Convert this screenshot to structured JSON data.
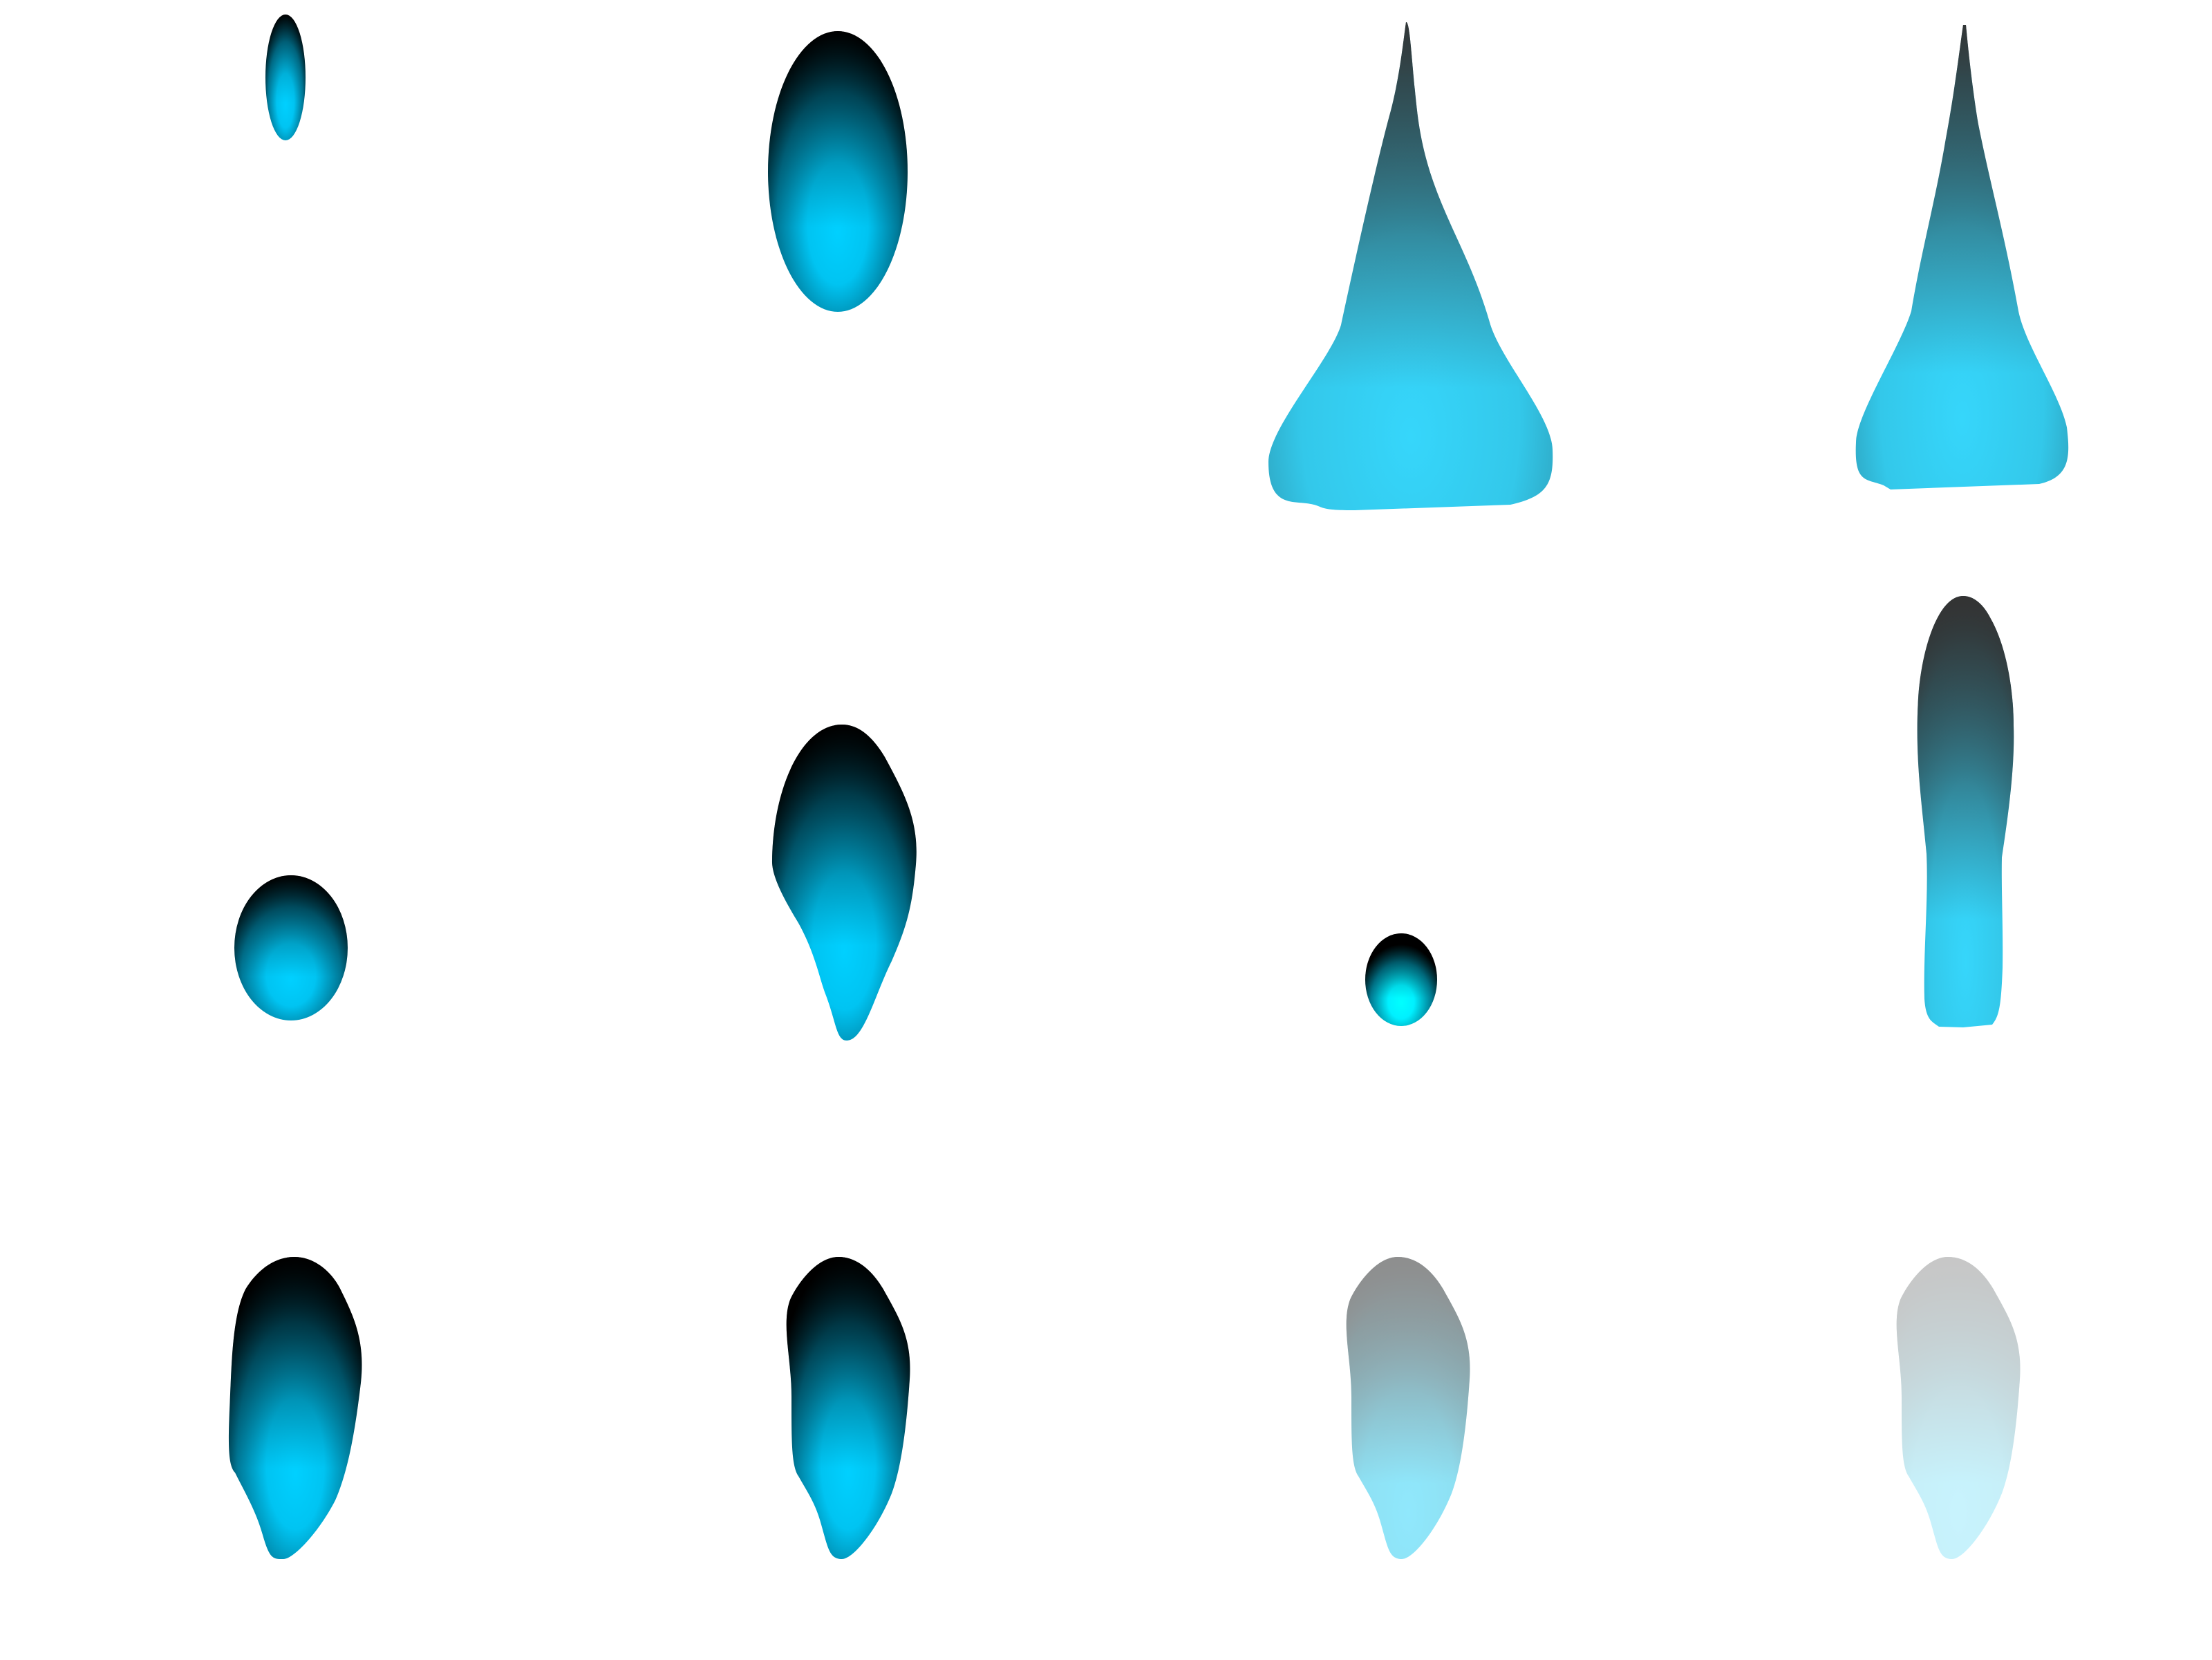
{
  "colors": {
    "background": "#ffffff",
    "cyan": "#00c8ff",
    "bright_cyan": "#00ffff",
    "black": "#000000",
    "dark_gray": "#333333",
    "light_cyan_gray": "#9fe6f5",
    "pale_cyan": "#d2f1f8"
  },
  "shapes": [
    {
      "name": "small-ellipse",
      "row": 1,
      "col": 1,
      "style": "cyan-black",
      "opacity": 1.0
    },
    {
      "name": "large-ellipse",
      "row": 1,
      "col": 2,
      "style": "cyan-black",
      "opacity": 1.0
    },
    {
      "name": "wide-cone",
      "row": 1,
      "col": 3,
      "style": "cyan-gray",
      "opacity": 1.0
    },
    {
      "name": "narrow-cone",
      "row": 1,
      "col": 4,
      "style": "cyan-gray",
      "opacity": 1.0
    },
    {
      "name": "round-ellipse",
      "row": 2,
      "col": 1,
      "style": "cyan-black",
      "opacity": 1.0
    },
    {
      "name": "droplet-with-tail",
      "row": 2,
      "col": 2,
      "style": "cyan-black",
      "opacity": 1.0
    },
    {
      "name": "tiny-ellipse-bright",
      "row": 2,
      "col": 3,
      "style": "bright-cyan-black",
      "opacity": 1.0
    },
    {
      "name": "tall-capsule",
      "row": 2,
      "col": 4,
      "style": "cyan-gray",
      "opacity": 1.0
    },
    {
      "name": "blob-1",
      "row": 3,
      "col": 1,
      "style": "cyan-black",
      "opacity": 1.0
    },
    {
      "name": "blob-2",
      "row": 3,
      "col": 2,
      "style": "cyan-black",
      "opacity": 1.0
    },
    {
      "name": "blob-3-faded",
      "row": 3,
      "col": 3,
      "style": "cyan-gray",
      "opacity": 0.55
    },
    {
      "name": "blob-4-faded",
      "row": 3,
      "col": 4,
      "style": "cyan-gray",
      "opacity": 0.28
    }
  ]
}
